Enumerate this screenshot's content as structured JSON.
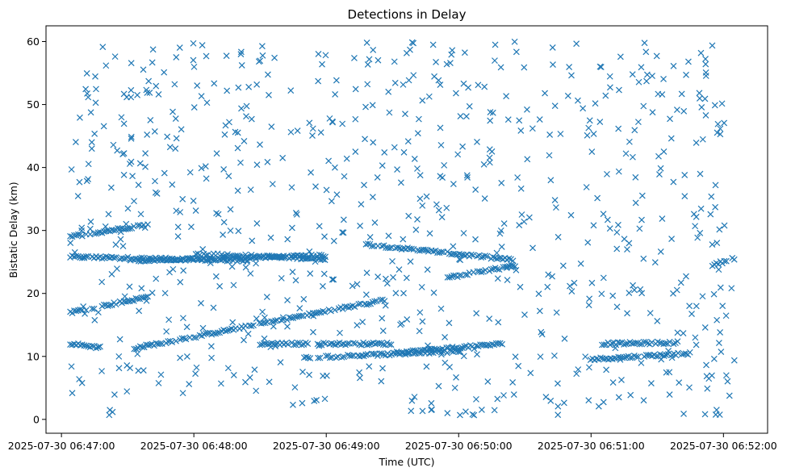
{
  "chart_data": {
    "type": "scatter",
    "title": "Detections in Delay",
    "xlabel": "Time (UTC)",
    "ylabel": "Bistatic Delay (km)",
    "marker": "x",
    "color": "#1f77b4",
    "xlim": [
      "2025-07-30 06:46:53",
      "2025-07-30 06:52:20"
    ],
    "ylim": [
      -2.2,
      62.5
    ],
    "x_ticks": [
      "2025-07-30 06:47:00",
      "2025-07-30 06:48:00",
      "2025-07-30 06:49:00",
      "2025-07-30 06:50:00",
      "2025-07-30 06:51:00",
      "2025-07-30 06:52:00"
    ],
    "y_ticks": [
      0,
      10,
      20,
      30,
      40,
      50,
      60
    ],
    "grid": false,
    "tracks": [
      {
        "start": "2025-07-30 06:47:04",
        "end": "2025-07-30 06:48:25",
        "delay_start": 25.8,
        "delay_end": 25.2
      },
      {
        "start": "2025-07-30 06:47:35",
        "end": "2025-07-30 06:49:00",
        "delay_start": 25.2,
        "delay_end": 26.0
      },
      {
        "start": "2025-07-30 06:48:00",
        "end": "2025-07-30 06:49:00",
        "delay_start": 26.3,
        "delay_end": 25.5
      },
      {
        "start": "2025-07-30 06:49:18",
        "end": "2025-07-30 06:50:25",
        "delay_start": 27.8,
        "delay_end": 25.3
      },
      {
        "start": "2025-07-30 06:49:55",
        "end": "2025-07-30 06:50:27",
        "delay_start": 22.5,
        "delay_end": 24.5
      },
      {
        "start": "2025-07-30 06:47:04",
        "end": "2025-07-30 06:47:40",
        "delay_start": 29.0,
        "delay_end": 31.0
      },
      {
        "start": "2025-07-30 06:47:04",
        "end": "2025-07-30 06:47:40",
        "delay_start": 17.0,
        "delay_end": 19.5
      },
      {
        "start": "2025-07-30 06:47:33",
        "end": "2025-07-30 06:49:27",
        "delay_start": 11.3,
        "delay_end": 19.0
      },
      {
        "start": "2025-07-30 06:47:04",
        "end": "2025-07-30 06:47:18",
        "delay_start": 12.0,
        "delay_end": 11.4
      },
      {
        "start": "2025-07-30 06:48:30",
        "end": "2025-07-30 06:49:30",
        "delay_start": 12.0,
        "delay_end": 12.0
      },
      {
        "start": "2025-07-30 06:48:50",
        "end": "2025-07-30 06:50:00",
        "delay_start": 9.8,
        "delay_end": 10.8
      },
      {
        "start": "2025-07-30 06:49:32",
        "end": "2025-07-30 06:50:20",
        "delay_start": 10.6,
        "delay_end": 12.0
      },
      {
        "start": "2025-07-30 06:50:58",
        "end": "2025-07-30 06:51:45",
        "delay_start": 9.5,
        "delay_end": 10.5
      },
      {
        "start": "2025-07-30 06:51:05",
        "end": "2025-07-30 06:51:40",
        "delay_start": 12.0,
        "delay_end": 12.2
      },
      {
        "start": "2025-07-30 06:51:55",
        "end": "2025-07-30 06:52:05",
        "delay_start": 24.5,
        "delay_end": 25.6
      }
    ],
    "background_noise": {
      "count": 760,
      "delay_range": [
        0.5,
        60
      ],
      "time_range": [
        "2025-07-30 06:47:04",
        "2025-07-30 06:52:05"
      ]
    }
  }
}
